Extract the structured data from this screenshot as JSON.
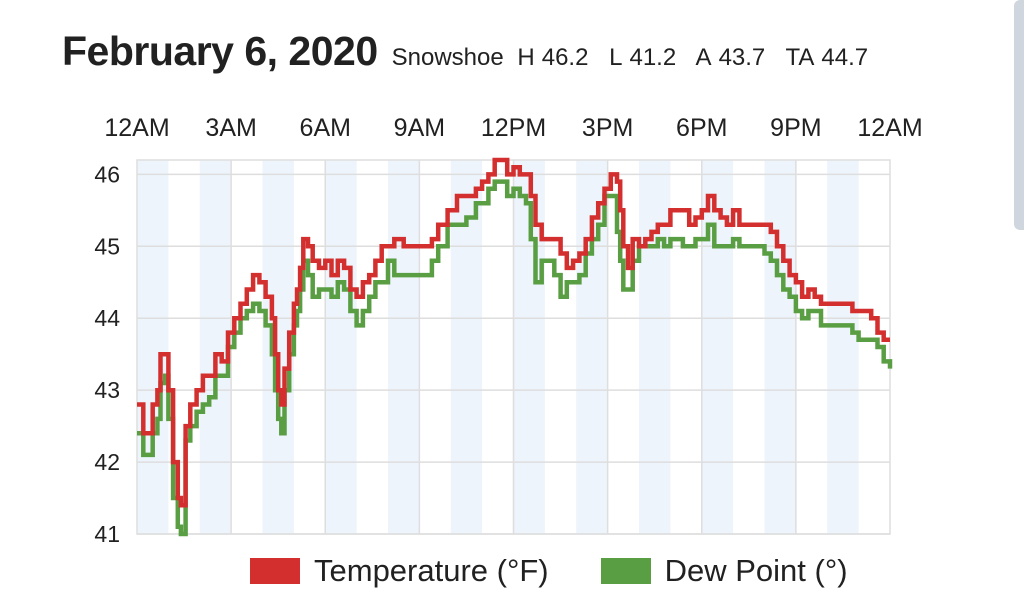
{
  "header": {
    "title": "February 6, 2020",
    "location": "Snowshoe",
    "stats": [
      {
        "label": "H",
        "value": "46.2"
      },
      {
        "label": "L",
        "value": "41.2"
      },
      {
        "label": "A",
        "value": "43.7"
      },
      {
        "label": "TA",
        "value": "44.7"
      }
    ]
  },
  "colors": {
    "temperature": "#d32f2f",
    "dew_point": "#5a9e44",
    "band": "#edf4fb",
    "grid": "#dedede"
  },
  "chart_data": {
    "type": "line",
    "title": "",
    "xlabel": "",
    "ylabel": "",
    "x_ticks": [
      {
        "hour": 0,
        "label": "12AM"
      },
      {
        "hour": 3,
        "label": "3AM"
      },
      {
        "hour": 6,
        "label": "6AM"
      },
      {
        "hour": 9,
        "label": "9AM"
      },
      {
        "hour": 12,
        "label": "12PM"
      },
      {
        "hour": 15,
        "label": "3PM"
      },
      {
        "hour": 18,
        "label": "6PM"
      },
      {
        "hour": 21,
        "label": "9PM"
      },
      {
        "hour": 24,
        "label": "12AM"
      }
    ],
    "xlim": [
      0,
      24
    ],
    "ylim": [
      41,
      46.2
    ],
    "y_ticks": [
      41,
      42,
      43,
      44,
      45,
      46
    ],
    "grid": true,
    "legend_position": "bottom",
    "series": [
      {
        "name": "Temperature (°F)",
        "color": "#d32f2f",
        "points": [
          [
            0.0,
            42.8
          ],
          [
            0.2,
            42.4
          ],
          [
            0.5,
            42.8
          ],
          [
            0.65,
            43.0
          ],
          [
            0.75,
            43.5
          ],
          [
            0.9,
            43.5
          ],
          [
            1.0,
            43.0
          ],
          [
            1.15,
            42.0
          ],
          [
            1.3,
            41.5
          ],
          [
            1.4,
            41.4
          ],
          [
            1.55,
            42.5
          ],
          [
            1.7,
            42.8
          ],
          [
            1.9,
            43.0
          ],
          [
            2.1,
            43.2
          ],
          [
            2.3,
            43.2
          ],
          [
            2.5,
            43.5
          ],
          [
            2.7,
            43.4
          ],
          [
            2.9,
            43.8
          ],
          [
            3.1,
            44.0
          ],
          [
            3.3,
            44.2
          ],
          [
            3.5,
            44.4
          ],
          [
            3.7,
            44.6
          ],
          [
            3.9,
            44.5
          ],
          [
            4.1,
            44.3
          ],
          [
            4.3,
            44.0
          ],
          [
            4.4,
            43.5
          ],
          [
            4.5,
            43.0
          ],
          [
            4.6,
            42.8
          ],
          [
            4.7,
            43.3
          ],
          [
            4.85,
            43.8
          ],
          [
            5.0,
            44.2
          ],
          [
            5.1,
            44.4
          ],
          [
            5.2,
            44.7
          ],
          [
            5.3,
            45.1
          ],
          [
            5.45,
            45.0
          ],
          [
            5.6,
            44.8
          ],
          [
            5.8,
            44.7
          ],
          [
            6.0,
            44.8
          ],
          [
            6.2,
            44.6
          ],
          [
            6.4,
            44.8
          ],
          [
            6.6,
            44.7
          ],
          [
            6.8,
            44.4
          ],
          [
            7.0,
            44.3
          ],
          [
            7.2,
            44.5
          ],
          [
            7.4,
            44.6
          ],
          [
            7.6,
            44.8
          ],
          [
            7.8,
            45.0
          ],
          [
            8.0,
            45.0
          ],
          [
            8.2,
            45.1
          ],
          [
            8.5,
            45.0
          ],
          [
            8.8,
            45.0
          ],
          [
            9.1,
            45.0
          ],
          [
            9.4,
            45.1
          ],
          [
            9.6,
            45.3
          ],
          [
            9.9,
            45.5
          ],
          [
            10.2,
            45.7
          ],
          [
            10.5,
            45.7
          ],
          [
            10.8,
            45.8
          ],
          [
            11.0,
            45.9
          ],
          [
            11.2,
            46.0
          ],
          [
            11.4,
            46.2
          ],
          [
            11.6,
            46.2
          ],
          [
            11.8,
            46.0
          ],
          [
            12.0,
            46.1
          ],
          [
            12.2,
            46.0
          ],
          [
            12.4,
            46.0
          ],
          [
            12.55,
            45.7
          ],
          [
            12.7,
            45.3
          ],
          [
            12.9,
            45.1
          ],
          [
            13.1,
            45.1
          ],
          [
            13.3,
            45.1
          ],
          [
            13.5,
            44.9
          ],
          [
            13.7,
            44.7
          ],
          [
            13.9,
            44.8
          ],
          [
            14.1,
            44.9
          ],
          [
            14.3,
            45.1
          ],
          [
            14.5,
            45.4
          ],
          [
            14.7,
            45.6
          ],
          [
            14.9,
            45.8
          ],
          [
            15.1,
            46.0
          ],
          [
            15.3,
            45.9
          ],
          [
            15.4,
            45.5
          ],
          [
            15.5,
            45.0
          ],
          [
            15.65,
            44.7
          ],
          [
            15.8,
            45.1
          ],
          [
            16.0,
            45.0
          ],
          [
            16.2,
            45.1
          ],
          [
            16.4,
            45.2
          ],
          [
            16.6,
            45.3
          ],
          [
            16.8,
            45.3
          ],
          [
            17.0,
            45.5
          ],
          [
            17.2,
            45.5
          ],
          [
            17.4,
            45.5
          ],
          [
            17.6,
            45.3
          ],
          [
            17.8,
            45.4
          ],
          [
            18.0,
            45.5
          ],
          [
            18.2,
            45.7
          ],
          [
            18.4,
            45.5
          ],
          [
            18.6,
            45.4
          ],
          [
            18.8,
            45.3
          ],
          [
            19.0,
            45.5
          ],
          [
            19.2,
            45.3
          ],
          [
            19.4,
            45.3
          ],
          [
            19.6,
            45.3
          ],
          [
            19.8,
            45.3
          ],
          [
            20.0,
            45.3
          ],
          [
            20.2,
            45.2
          ],
          [
            20.4,
            45.0
          ],
          [
            20.6,
            44.8
          ],
          [
            20.8,
            44.6
          ],
          [
            21.0,
            44.5
          ],
          [
            21.2,
            44.3
          ],
          [
            21.4,
            44.4
          ],
          [
            21.6,
            44.3
          ],
          [
            21.8,
            44.2
          ],
          [
            22.0,
            44.2
          ],
          [
            22.2,
            44.2
          ],
          [
            22.4,
            44.2
          ],
          [
            22.6,
            44.2
          ],
          [
            22.8,
            44.1
          ],
          [
            23.0,
            44.1
          ],
          [
            23.2,
            44.1
          ],
          [
            23.4,
            44.0
          ],
          [
            23.6,
            43.8
          ],
          [
            23.8,
            43.7
          ],
          [
            24.0,
            43.7
          ]
        ]
      },
      {
        "name": "Dew Point (°)",
        "color": "#5a9e44",
        "points": [
          [
            0.0,
            42.4
          ],
          [
            0.2,
            42.1
          ],
          [
            0.5,
            42.4
          ],
          [
            0.65,
            42.6
          ],
          [
            0.75,
            43.1
          ],
          [
            0.9,
            43.2
          ],
          [
            1.0,
            42.6
          ],
          [
            1.15,
            41.5
          ],
          [
            1.3,
            41.1
          ],
          [
            1.4,
            41.0
          ],
          [
            1.55,
            42.3
          ],
          [
            1.7,
            42.5
          ],
          [
            1.9,
            42.7
          ],
          [
            2.1,
            42.8
          ],
          [
            2.3,
            42.9
          ],
          [
            2.5,
            43.2
          ],
          [
            2.7,
            43.2
          ],
          [
            2.9,
            43.6
          ],
          [
            3.1,
            43.8
          ],
          [
            3.3,
            44.0
          ],
          [
            3.5,
            44.1
          ],
          [
            3.7,
            44.2
          ],
          [
            3.9,
            44.1
          ],
          [
            4.1,
            43.9
          ],
          [
            4.3,
            43.5
          ],
          [
            4.4,
            43.0
          ],
          [
            4.5,
            42.6
          ],
          [
            4.6,
            42.4
          ],
          [
            4.7,
            43.0
          ],
          [
            4.85,
            43.5
          ],
          [
            5.0,
            43.9
          ],
          [
            5.1,
            44.1
          ],
          [
            5.2,
            44.4
          ],
          [
            5.3,
            44.8
          ],
          [
            5.45,
            44.6
          ],
          [
            5.6,
            44.3
          ],
          [
            5.8,
            44.4
          ],
          [
            6.0,
            44.4
          ],
          [
            6.2,
            44.3
          ],
          [
            6.4,
            44.5
          ],
          [
            6.6,
            44.4
          ],
          [
            6.8,
            44.1
          ],
          [
            7.0,
            43.9
          ],
          [
            7.2,
            44.1
          ],
          [
            7.4,
            44.3
          ],
          [
            7.6,
            44.5
          ],
          [
            7.8,
            44.5
          ],
          [
            8.0,
            44.8
          ],
          [
            8.2,
            44.6
          ],
          [
            8.5,
            44.6
          ],
          [
            8.8,
            44.6
          ],
          [
            9.1,
            44.6
          ],
          [
            9.4,
            44.8
          ],
          [
            9.6,
            45.0
          ],
          [
            9.9,
            45.3
          ],
          [
            10.2,
            45.3
          ],
          [
            10.5,
            45.4
          ],
          [
            10.8,
            45.6
          ],
          [
            11.0,
            45.6
          ],
          [
            11.2,
            45.8
          ],
          [
            11.4,
            45.9
          ],
          [
            11.6,
            45.9
          ],
          [
            11.8,
            45.7
          ],
          [
            12.0,
            45.8
          ],
          [
            12.2,
            45.7
          ],
          [
            12.4,
            45.6
          ],
          [
            12.55,
            45.1
          ],
          [
            12.7,
            44.5
          ],
          [
            12.9,
            44.8
          ],
          [
            13.1,
            44.8
          ],
          [
            13.3,
            44.6
          ],
          [
            13.5,
            44.3
          ],
          [
            13.7,
            44.5
          ],
          [
            13.9,
            44.5
          ],
          [
            14.1,
            44.6
          ],
          [
            14.3,
            44.9
          ],
          [
            14.5,
            45.1
          ],
          [
            14.7,
            45.3
          ],
          [
            14.9,
            45.7
          ],
          [
            15.1,
            45.7
          ],
          [
            15.3,
            45.2
          ],
          [
            15.4,
            44.8
          ],
          [
            15.5,
            44.4
          ],
          [
            15.65,
            44.4
          ],
          [
            15.8,
            44.8
          ],
          [
            16.0,
            45.0
          ],
          [
            16.2,
            45.0
          ],
          [
            16.4,
            45.0
          ],
          [
            16.6,
            45.1
          ],
          [
            16.8,
            45.0
          ],
          [
            17.0,
            45.1
          ],
          [
            17.2,
            45.1
          ],
          [
            17.4,
            45.0
          ],
          [
            17.6,
            45.0
          ],
          [
            17.8,
            45.1
          ],
          [
            18.0,
            45.1
          ],
          [
            18.2,
            45.3
          ],
          [
            18.4,
            45.0
          ],
          [
            18.6,
            45.0
          ],
          [
            18.8,
            45.0
          ],
          [
            19.0,
            45.1
          ],
          [
            19.2,
            45.0
          ],
          [
            19.4,
            45.0
          ],
          [
            19.6,
            45.0
          ],
          [
            19.8,
            45.0
          ],
          [
            20.0,
            44.9
          ],
          [
            20.2,
            44.8
          ],
          [
            20.4,
            44.6
          ],
          [
            20.6,
            44.4
          ],
          [
            20.8,
            44.3
          ],
          [
            21.0,
            44.1
          ],
          [
            21.2,
            44.0
          ],
          [
            21.4,
            44.1
          ],
          [
            21.6,
            44.1
          ],
          [
            21.8,
            43.9
          ],
          [
            22.0,
            43.9
          ],
          [
            22.2,
            43.9
          ],
          [
            22.4,
            43.9
          ],
          [
            22.6,
            43.9
          ],
          [
            22.8,
            43.8
          ],
          [
            23.0,
            43.7
          ],
          [
            23.2,
            43.7
          ],
          [
            23.4,
            43.7
          ],
          [
            23.6,
            43.6
          ],
          [
            23.8,
            43.4
          ],
          [
            24.0,
            43.3
          ]
        ]
      }
    ]
  }
}
